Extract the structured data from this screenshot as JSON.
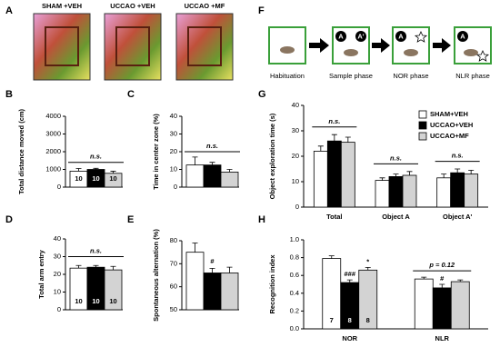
{
  "panel_a": {
    "letter": "A",
    "groups": [
      "SHAM +VEH",
      "UCCAO +VEH",
      "UCCAO +MF"
    ]
  },
  "panel_f": {
    "letter": "F",
    "phases": [
      "Habituation",
      "Sample phase",
      "NOR phase",
      "NLR phase"
    ],
    "object_labels": [
      "A",
      "A'",
      "A",
      "A"
    ]
  },
  "chart_data": [
    {
      "type": "bar",
      "panel": "B",
      "y_label": "Total distance moved (cm)",
      "values": [
        900,
        1000,
        780
      ],
      "errors": [
        150,
        60,
        120
      ],
      "colors": [
        "#ffffff",
        "#000000",
        "#d3d3d3"
      ],
      "n_labels": [
        10,
        10,
        10
      ],
      "annotations": [
        "n.s."
      ],
      "ylim": [
        0,
        4000
      ],
      "yticks": [
        0,
        1000,
        2000,
        3000,
        4000
      ]
    },
    {
      "type": "bar",
      "panel": "C",
      "y_label": "Time in center zone (%)",
      "values": [
        12.5,
        12.5,
        8.5
      ],
      "errors": [
        4.5,
        1.5,
        1.5
      ],
      "colors": [
        "#ffffff",
        "#000000",
        "#d3d3d3"
      ],
      "annotations": [
        "n.s."
      ],
      "ylim": [
        0,
        40
      ],
      "yticks": [
        0,
        10,
        20,
        30,
        40
      ]
    },
    {
      "type": "bar",
      "panel": "D",
      "y_label": "Total arm entry",
      "values": [
        23.5,
        24,
        22.5
      ],
      "errors": [
        1.5,
        1,
        2
      ],
      "colors": [
        "#ffffff",
        "#000000",
        "#d3d3d3"
      ],
      "n_labels": [
        10,
        10,
        10
      ],
      "annotations": [
        "n.s."
      ],
      "ylim": [
        0,
        40
      ],
      "yticks": [
        0,
        10,
        20,
        30,
        40
      ]
    },
    {
      "type": "bar",
      "panel": "E",
      "y_label": "Spontaneous alternation (%)",
      "values": [
        75,
        66,
        66
      ],
      "errors": [
        4,
        2,
        2.5
      ],
      "colors": [
        "#ffffff",
        "#000000",
        "#d3d3d3"
      ],
      "annotations": [
        "#"
      ],
      "ylim": [
        50,
        80
      ],
      "yticks": [
        50,
        60,
        70,
        80
      ]
    },
    {
      "type": "grouped_bar",
      "panel": "G",
      "y_label": "Object exploration time (s)",
      "categories": [
        "Total",
        "Object A",
        "Object A'"
      ],
      "series": [
        {
          "name": "SHAM+VEH",
          "color": "#ffffff",
          "values": [
            22,
            10.5,
            11.5
          ],
          "errors": [
            2,
            1,
            1.5
          ]
        },
        {
          "name": "UCCAO+VEH",
          "color": "#000000",
          "values": [
            26,
            12,
            13.5
          ],
          "errors": [
            2.5,
            1,
            1.5
          ]
        },
        {
          "name": "UCCAO+MF",
          "color": "#d3d3d3",
          "values": [
            25.5,
            12.5,
            13
          ],
          "errors": [
            2,
            1.5,
            1.5
          ]
        }
      ],
      "legend": "upper right",
      "annotations": [
        "n.s.",
        "n.s.",
        "n.s."
      ],
      "ylim": [
        0,
        40
      ],
      "yticks": [
        0,
        10,
        20,
        30,
        40
      ]
    },
    {
      "type": "grouped_bar",
      "panel": "H",
      "y_label": "Recognition index",
      "categories": [
        "NOR",
        "NLR"
      ],
      "series": [
        {
          "name": "SHAM+VEH",
          "color": "#ffffff",
          "values": [
            0.79,
            0.56
          ],
          "errors": [
            0.03,
            0.02
          ]
        },
        {
          "name": "UCCAO+VEH",
          "color": "#000000",
          "values": [
            0.52,
            0.46
          ],
          "errors": [
            0.03,
            0.04
          ]
        },
        {
          "name": "UCCAO+MF",
          "color": "#d3d3d3",
          "values": [
            0.66,
            0.53
          ],
          "errors": [
            0.03,
            0.02
          ]
        }
      ],
      "n_labels": [
        7,
        8,
        8
      ],
      "annotations": [
        "###",
        "*",
        "#",
        "p = 0.12"
      ],
      "ylim": [
        0,
        1
      ],
      "yticks": [
        {
          "value": 0,
          "label": "0.0"
        },
        0.2,
        0.4,
        0.6,
        0.8,
        {
          "value": 1,
          "label": "1.0"
        }
      ]
    }
  ]
}
